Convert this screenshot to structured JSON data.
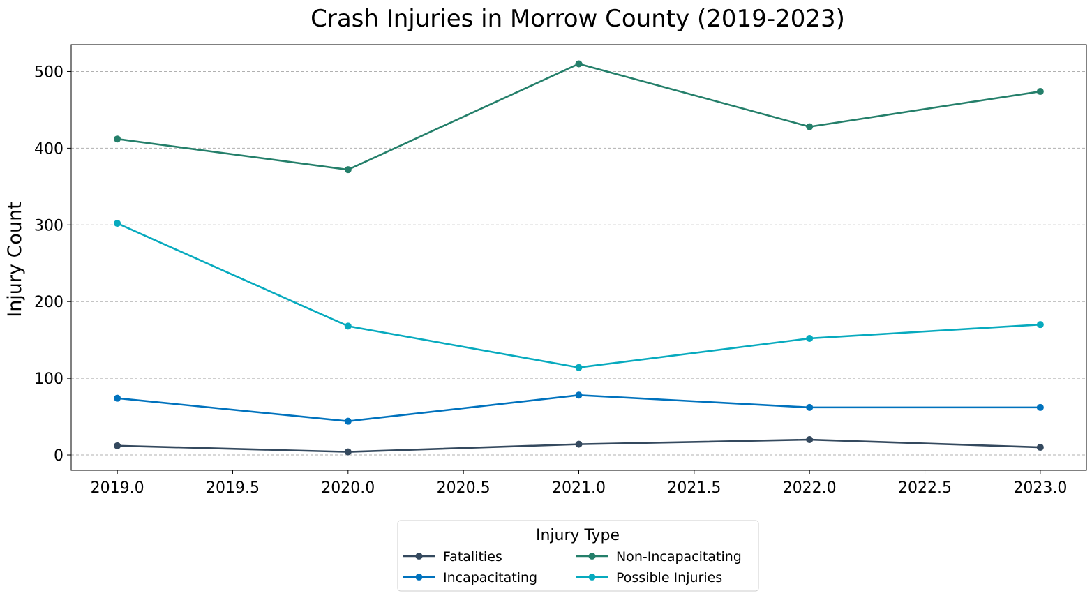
{
  "chart_data": {
    "type": "line",
    "title": "Crash Injuries in Morrow County (2019-2023)",
    "xlabel": "",
    "ylabel": "Injury Count",
    "x": [
      2019,
      2020,
      2021,
      2022,
      2023
    ],
    "xlim": [
      2018.8,
      2023.2
    ],
    "ylim": [
      -20,
      535
    ],
    "xticks": [
      "2019.0",
      "2019.5",
      "2020.0",
      "2020.5",
      "2021.0",
      "2021.5",
      "2022.0",
      "2022.5",
      "2023.0"
    ],
    "yticks": [
      "0",
      "100",
      "200",
      "300",
      "400",
      "500"
    ],
    "grid": "y-dashed",
    "legend": {
      "title": "Injury Type",
      "placement": "bottom-center, below plot",
      "columns": 2
    },
    "series": [
      {
        "name": "Fatalities",
        "color": "#34495e",
        "values": [
          12,
          4,
          14,
          20,
          10
        ]
      },
      {
        "name": "Incapacitating",
        "color": "#0072bd",
        "values": [
          74,
          44,
          78,
          62,
          62
        ]
      },
      {
        "name": "Non-Incapacitating",
        "color": "#247f6a",
        "values": [
          412,
          372,
          510,
          428,
          474
        ]
      },
      {
        "name": "Possible Injuries",
        "color": "#07aabe",
        "values": [
          302,
          168,
          114,
          152,
          170
        ]
      }
    ]
  }
}
